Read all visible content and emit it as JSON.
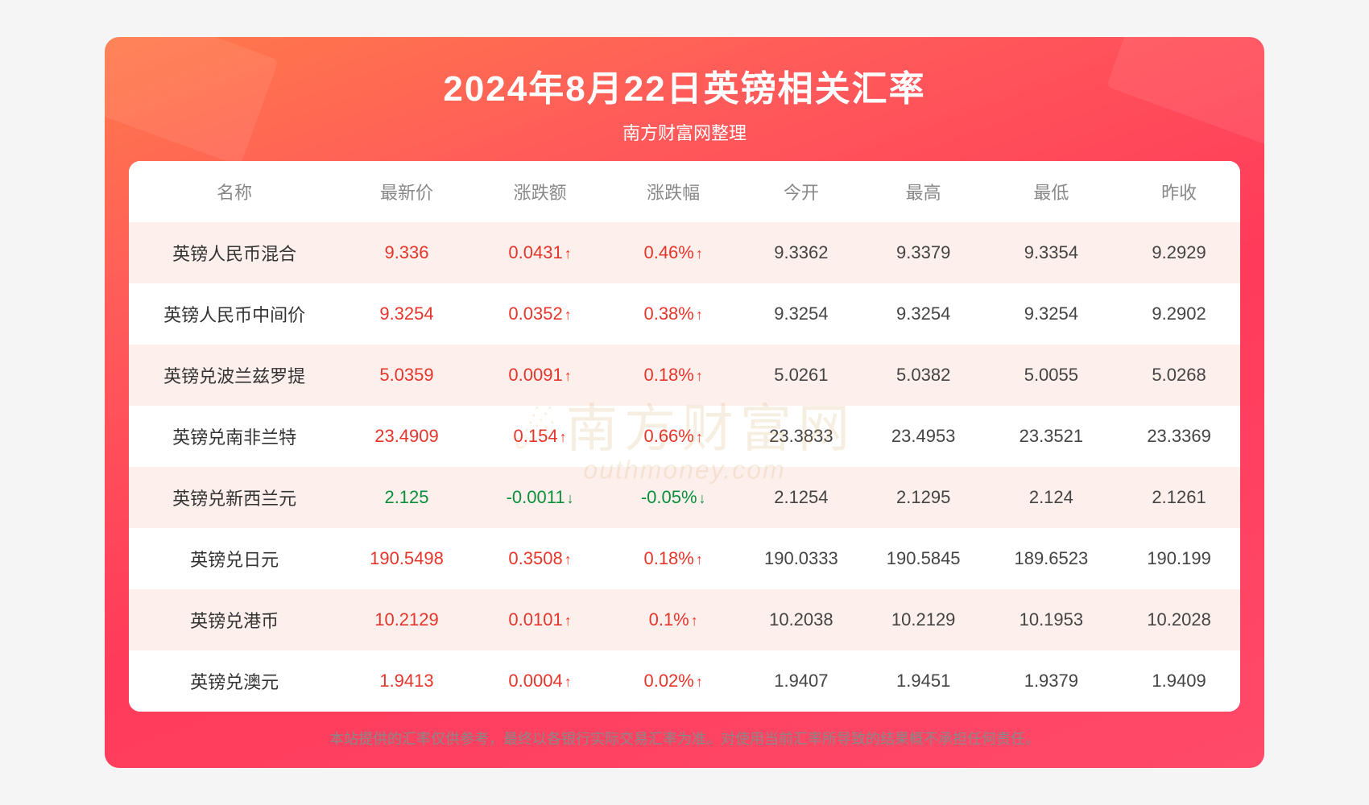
{
  "header": {
    "title": "2024年8月22日英镑相关汇率",
    "subtitle": "南方财富网整理"
  },
  "watermark": {
    "cn": "南方财富网",
    "en": "outhmoney.com"
  },
  "styling": {
    "card_gradient": [
      "#ff7a4a",
      "#ff5a5a",
      "#ff3a5a",
      "#ff4a6a"
    ],
    "title_color": "#ffffff",
    "title_fontsize": 44,
    "subtitle_fontsize": 22,
    "table_bg": "#ffffff",
    "row_stripe_color": "#fdf0ec",
    "header_text_color": "#888888",
    "cell_text_color": "#444444",
    "up_color": "#e6352b",
    "down_color": "#0a8f3c",
    "cell_fontsize": 22,
    "border_radius": 14,
    "watermark_color": "#c98a3a",
    "watermark_opacity": 0.14,
    "footer_color": "#888888",
    "footer_fontsize": 18
  },
  "table": {
    "columns": [
      "名称",
      "最新价",
      "涨跌额",
      "涨跌幅",
      "今开",
      "最高",
      "最低",
      "昨收"
    ],
    "column_widths_pct": [
      19,
      12,
      12,
      12,
      11,
      11,
      12,
      11
    ],
    "rows": [
      {
        "name": "英镑人民币混合",
        "price": "9.336",
        "change": "0.0431",
        "pct": "0.46%",
        "dir": "up",
        "open": "9.3362",
        "high": "9.3379",
        "low": "9.3354",
        "prev": "9.2929"
      },
      {
        "name": "英镑人民币中间价",
        "price": "9.3254",
        "change": "0.0352",
        "pct": "0.38%",
        "dir": "up",
        "open": "9.3254",
        "high": "9.3254",
        "low": "9.3254",
        "prev": "9.2902"
      },
      {
        "name": "英镑兑波兰兹罗提",
        "price": "5.0359",
        "change": "0.0091",
        "pct": "0.18%",
        "dir": "up",
        "open": "5.0261",
        "high": "5.0382",
        "low": "5.0055",
        "prev": "5.0268"
      },
      {
        "name": "英镑兑南非兰特",
        "price": "23.4909",
        "change": "0.154",
        "pct": "0.66%",
        "dir": "up",
        "open": "23.3833",
        "high": "23.4953",
        "low": "23.3521",
        "prev": "23.3369"
      },
      {
        "name": "英镑兑新西兰元",
        "price": "2.125",
        "change": "-0.0011",
        "pct": "-0.05%",
        "dir": "down",
        "open": "2.1254",
        "high": "2.1295",
        "low": "2.124",
        "prev": "2.1261"
      },
      {
        "name": "英镑兑日元",
        "price": "190.5498",
        "change": "0.3508",
        "pct": "0.18%",
        "dir": "up",
        "open": "190.0333",
        "high": "190.5845",
        "low": "189.6523",
        "prev": "190.199"
      },
      {
        "name": "英镑兑港币",
        "price": "10.2129",
        "change": "0.0101",
        "pct": "0.1%",
        "dir": "up",
        "open": "10.2038",
        "high": "10.2129",
        "low": "10.1953",
        "prev": "10.2028"
      },
      {
        "name": "英镑兑澳元",
        "price": "1.9413",
        "change": "0.0004",
        "pct": "0.02%",
        "dir": "up",
        "open": "1.9407",
        "high": "1.9451",
        "low": "1.9379",
        "prev": "1.9409"
      }
    ]
  },
  "arrows": {
    "up": "↑",
    "down": "↓"
  },
  "footer": {
    "text": "本站提供的汇率仅供参考，最终以各银行实际交易汇率为准。对使用当前汇率所导致的结果概不承担任何责任。"
  }
}
